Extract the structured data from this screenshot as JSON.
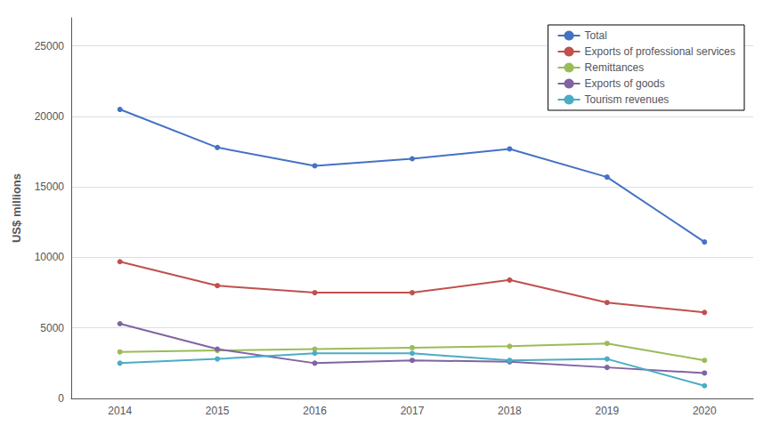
{
  "chart_data": {
    "type": "line",
    "categories": [
      "2014",
      "2015",
      "2016",
      "2017",
      "2018",
      "2019",
      "2020"
    ],
    "series": [
      {
        "name": "Total",
        "color": "#4472c4",
        "marker": "circle",
        "values": [
          20500,
          17800,
          16500,
          17000,
          17700,
          15700,
          11100
        ]
      },
      {
        "name": "Exports of professional services",
        "color": "#c0504d",
        "marker": "circle",
        "values": [
          9700,
          8000,
          7500,
          7500,
          8400,
          6800,
          6100
        ]
      },
      {
        "name": "Remittances",
        "color": "#9bbb59",
        "marker": "circle",
        "values": [
          3300,
          3400,
          3500,
          3600,
          3700,
          3900,
          2700
        ]
      },
      {
        "name": "Exports of goods",
        "color": "#8064a2",
        "marker": "circle",
        "values": [
          5300,
          3500,
          2500,
          2700,
          2600,
          2200,
          1800
        ]
      },
      {
        "name": "Tourism revenues",
        "color": "#4bacc6",
        "marker": "circle",
        "values": [
          2500,
          2800,
          3200,
          3200,
          2700,
          2800,
          900
        ]
      }
    ],
    "ylabel": "US$ millions",
    "ylim": [
      0,
      27000
    ],
    "yticks": [
      0,
      5000,
      10000,
      15000,
      20000,
      25000
    ],
    "grid": true,
    "legend": "upper right"
  }
}
